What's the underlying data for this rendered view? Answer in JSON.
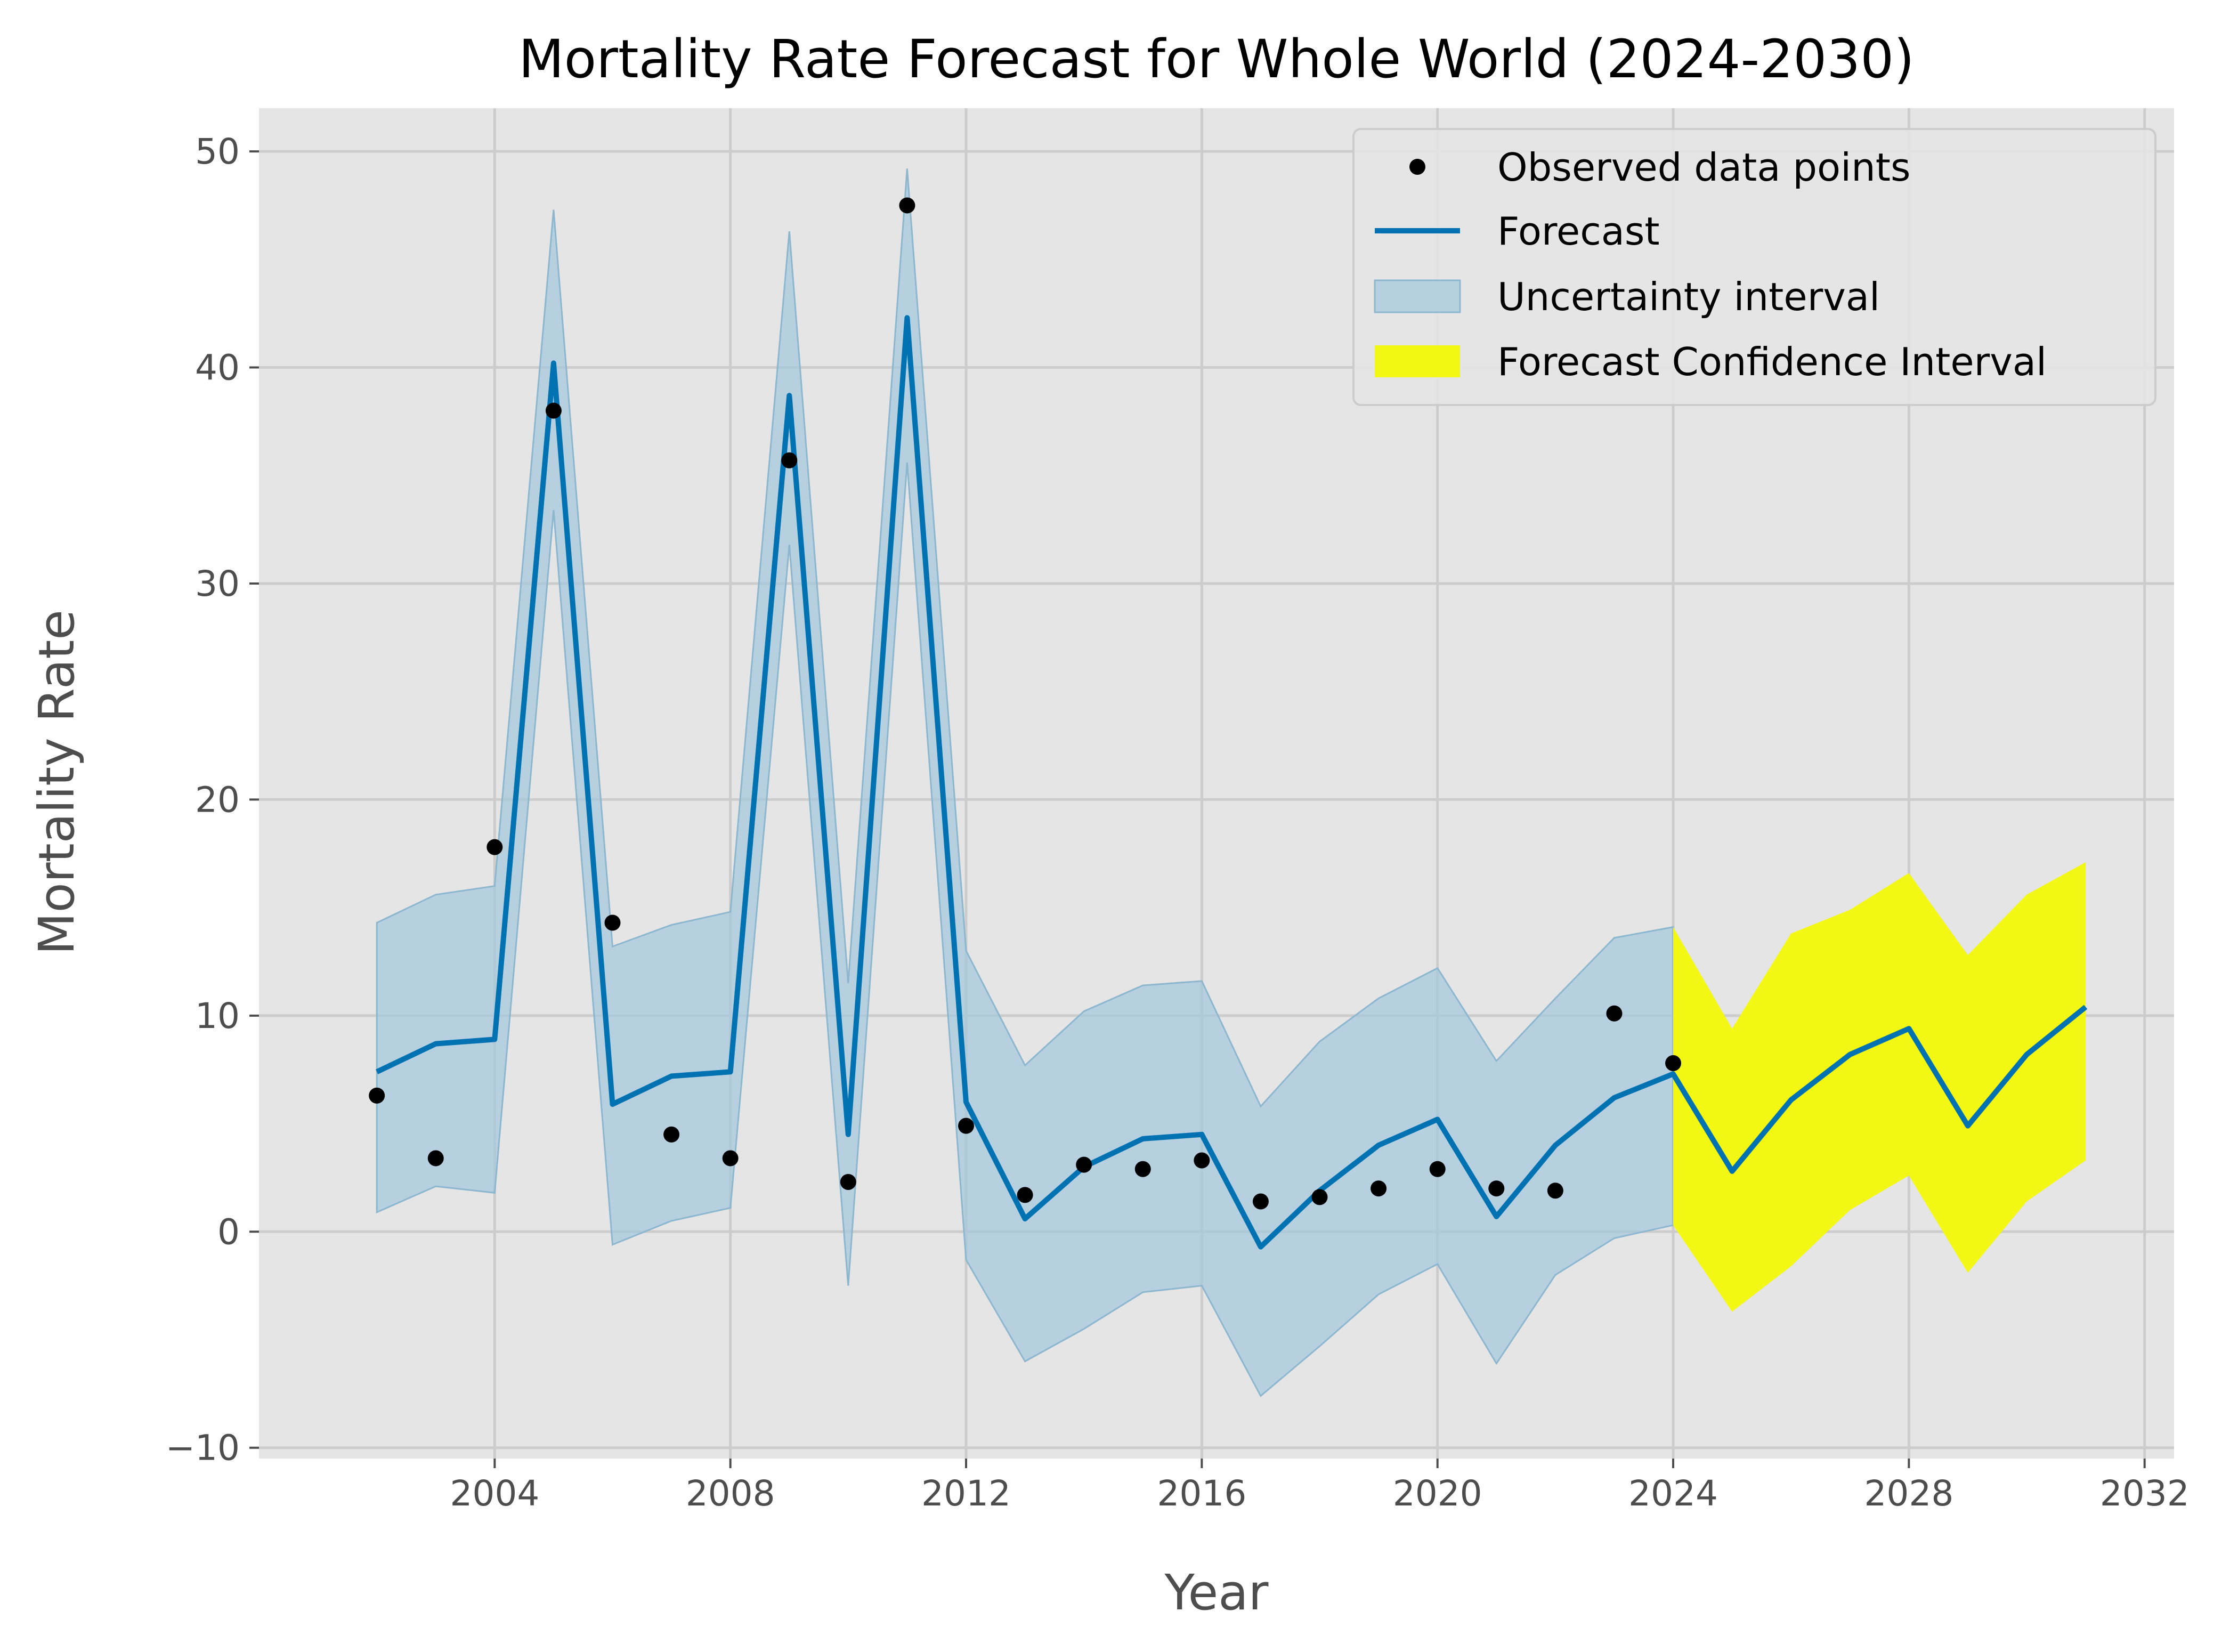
{
  "chart_data": {
    "type": "line",
    "title": "Mortality Rate Forecast for Whole World (2024-2030)",
    "xlabel": "Year",
    "ylabel": "Mortality Rate",
    "xlim": [
      2000.0,
      2032.5
    ],
    "ylim": [
      -10.5,
      52
    ],
    "x_ticks": [
      2004,
      2008,
      2012,
      2016,
      2020,
      2024,
      2028,
      2032
    ],
    "y_ticks": [
      -10,
      0,
      10,
      20,
      30,
      40,
      50
    ],
    "x_tick_labels": [
      "2004",
      "2008",
      "2012",
      "2016",
      "2020",
      "2024",
      "2028",
      "2032"
    ],
    "y_tick_labels": [
      "−10",
      "0",
      "10",
      "20",
      "30",
      "40",
      "50"
    ],
    "grid": true,
    "legend_position": "top-right",
    "colors": {
      "background": "#e5e5e5",
      "grid": "#cccccc",
      "forecast": "#0072b2",
      "uncertainty": "#a6c8dd",
      "forecast_ci": "#f2f713",
      "points": "#000000"
    },
    "legend": [
      {
        "label": "Observed data points",
        "kind": "point"
      },
      {
        "label": "Forecast",
        "kind": "line"
      },
      {
        "label": "Uncertainty interval",
        "kind": "band"
      },
      {
        "label": "Forecast Confidence Interval",
        "kind": "forecast-band"
      }
    ],
    "observed": {
      "name": "Observed data points",
      "x": [
        2002,
        2003,
        2004,
        2005,
        2006,
        2007,
        2008,
        2009,
        2010,
        2011,
        2012,
        2013,
        2014,
        2015,
        2016,
        2017,
        2018,
        2019,
        2020,
        2021,
        2022,
        2023,
        2024
      ],
      "y": [
        6.3,
        3.4,
        17.8,
        38.0,
        14.3,
        4.5,
        3.4,
        35.7,
        2.3,
        47.5,
        4.9,
        1.7,
        3.1,
        2.9,
        3.3,
        1.4,
        1.6,
        2.0,
        2.9,
        2.0,
        1.9,
        10.1,
        7.8
      ]
    },
    "forecast": {
      "name": "Forecast",
      "x": [
        2002,
        2003,
        2004,
        2005,
        2006,
        2007,
        2008,
        2009,
        2010,
        2011,
        2012,
        2013,
        2014,
        2015,
        2016,
        2017,
        2018,
        2019,
        2020,
        2021,
        2022,
        2023,
        2024,
        2025,
        2026,
        2027,
        2028,
        2029,
        2030,
        2031
      ],
      "y": [
        7.4,
        8.7,
        8.9,
        40.2,
        5.9,
        7.2,
        7.4,
        38.7,
        4.5,
        42.3,
        6.0,
        0.6,
        3.0,
        4.3,
        4.5,
        -0.7,
        1.9,
        4.0,
        5.2,
        0.7,
        4.0,
        6.2,
        7.3,
        2.8,
        6.1,
        8.2,
        9.4,
        4.9,
        8.2,
        10.4
      ]
    },
    "uncertainty": {
      "name": "Uncertainty interval",
      "x": [
        2002,
        2003,
        2004,
        2005,
        2006,
        2007,
        2008,
        2009,
        2010,
        2011,
        2012,
        2013,
        2014,
        2015,
        2016,
        2017,
        2018,
        2019,
        2020,
        2021,
        2022,
        2023,
        2024
      ],
      "lower": [
        0.9,
        2.1,
        1.8,
        33.4,
        -0.6,
        0.5,
        1.1,
        31.8,
        -2.5,
        35.6,
        -1.3,
        -6.0,
        -4.5,
        -2.8,
        -2.5,
        -7.6,
        -5.3,
        -2.9,
        -1.5,
        -6.1,
        -2.0,
        -0.3,
        0.3
      ],
      "upper": [
        14.3,
        15.6,
        16.0,
        47.3,
        13.2,
        14.2,
        14.8,
        46.3,
        11.5,
        49.2,
        13.0,
        7.7,
        10.2,
        11.4,
        11.6,
        5.8,
        8.8,
        10.8,
        12.2,
        7.9,
        10.8,
        13.6,
        14.1
      ]
    },
    "forecast_ci": {
      "name": "Forecast Confidence Interval",
      "x": [
        2024,
        2025,
        2026,
        2027,
        2028,
        2029,
        2030,
        2031
      ],
      "lower": [
        0.3,
        -3.7,
        -1.6,
        1.0,
        2.6,
        -1.9,
        1.4,
        3.3
      ],
      "upper": [
        14.1,
        9.4,
        13.8,
        14.9,
        16.6,
        12.8,
        15.6,
        17.1
      ]
    }
  }
}
